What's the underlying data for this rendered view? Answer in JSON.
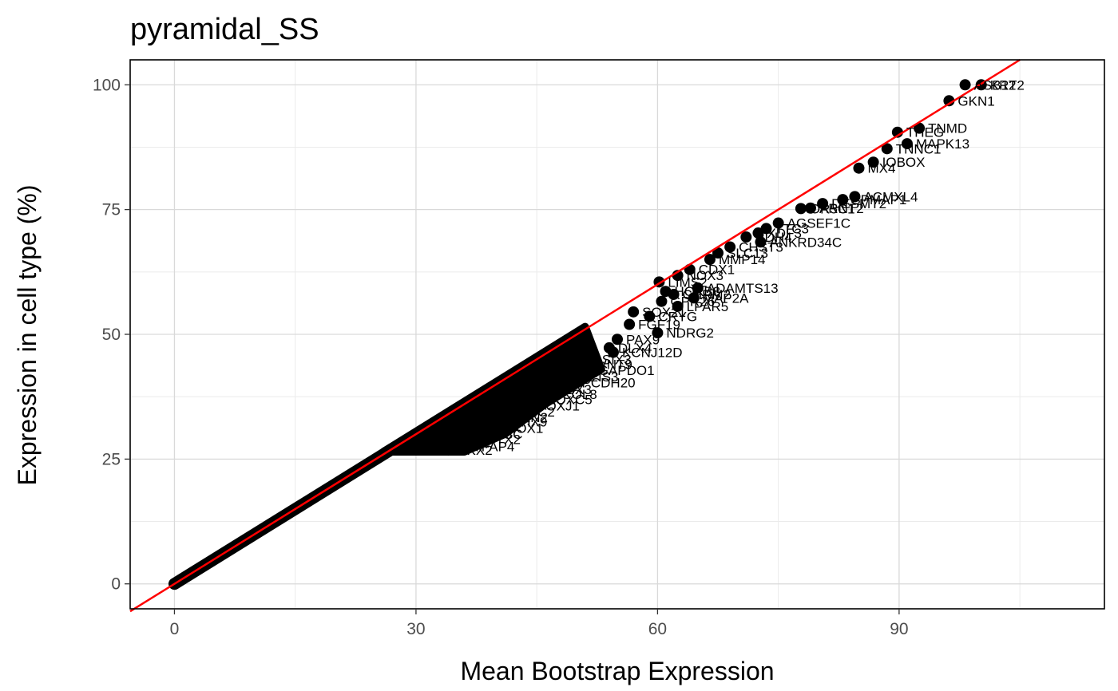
{
  "chart_data": {
    "type": "scatter",
    "title": "pyramidal_SS",
    "xlabel": "Mean Bootstrap Expression",
    "ylabel": "Expression in cell type (%)",
    "xlim": [
      -5.5,
      115.5
    ],
    "ylim": [
      -5,
      105
    ],
    "x_ticks": [
      0,
      30,
      60,
      90
    ],
    "y_ticks": [
      0,
      25,
      50,
      75,
      100
    ],
    "grid": true,
    "legend": "none",
    "colors": {
      "points": "#000000",
      "reference_line": "#ff0000",
      "grid_major": "#d9d9d9",
      "grid_minor": "#ebebeb",
      "panel_border": "#000000"
    },
    "reference_line": {
      "slope": 1,
      "intercept": 0
    },
    "dense_band": {
      "x_start": 0,
      "x_split": 27,
      "x_end": 51,
      "y_floor": 26.5
    },
    "labeled_points": [
      {
        "label": "ASB12",
        "x": 98.2,
        "y": 100
      },
      {
        "label": "KRT2",
        "x": 100.2,
        "y": 100
      },
      {
        "label": "GKN1",
        "x": 96.2,
        "y": 96.8
      },
      {
        "label": "TNMD",
        "x": 92.5,
        "y": 91.3
      },
      {
        "label": "THEG",
        "x": 89.8,
        "y": 90.5
      },
      {
        "label": "MAPK13",
        "x": 91.0,
        "y": 88.2
      },
      {
        "label": "TNNC1",
        "x": 88.5,
        "y": 87.2
      },
      {
        "label": "IOBOX",
        "x": 86.8,
        "y": 84.5
      },
      {
        "label": "MX4",
        "x": 85.0,
        "y": 83.3
      },
      {
        "label": "ACMXL4",
        "x": 84.5,
        "y": 77.6
      },
      {
        "label": "SPMAP1",
        "x": 83.0,
        "y": 77.0
      },
      {
        "label": "DESMT2",
        "x": 80.5,
        "y": 76.2
      },
      {
        "label": "ARNT2",
        "x": 79.0,
        "y": 75.3
      },
      {
        "label": "OR5C1",
        "x": 77.8,
        "y": 75.2
      },
      {
        "label": "AGSEF1C",
        "x": 75.0,
        "y": 72.3
      },
      {
        "label": "TTC3",
        "x": 73.5,
        "y": 71.2
      },
      {
        "label": "XDF3",
        "x": 72.5,
        "y": 70.3
      },
      {
        "label": "RDH4",
        "x": 71.0,
        "y": 69.5
      },
      {
        "label": "ANKRD34C",
        "x": 72.8,
        "y": 68.5
      },
      {
        "label": "CHST3",
        "x": 69.0,
        "y": 67.5
      },
      {
        "label": "SLC13",
        "x": 67.5,
        "y": 66.3
      },
      {
        "label": "MMP14",
        "x": 66.5,
        "y": 65.0
      },
      {
        "label": "CDX1",
        "x": 64.0,
        "y": 63.0
      },
      {
        "label": "NOX3",
        "x": 62.5,
        "y": 61.8
      },
      {
        "label": "LIMS2",
        "x": 60.2,
        "y": 60.5
      },
      {
        "label": "ADAMTS13",
        "x": 65.0,
        "y": 59.3
      },
      {
        "label": "HOXB8",
        "x": 61.0,
        "y": 58.6
      },
      {
        "label": "CHRM2",
        "x": 62.0,
        "y": 58.0
      },
      {
        "label": "MAP2A",
        "x": 64.5,
        "y": 57.3
      },
      {
        "label": "GPR26",
        "x": 60.5,
        "y": 56.6
      },
      {
        "label": "LPAR5",
        "x": 62.5,
        "y": 55.6
      },
      {
        "label": "SOX21",
        "x": 57.0,
        "y": 54.5
      },
      {
        "label": "CRYG",
        "x": 59.0,
        "y": 53.6
      },
      {
        "label": "FGF19",
        "x": 56.5,
        "y": 52.0
      },
      {
        "label": "NDRG2",
        "x": 60.0,
        "y": 50.3
      },
      {
        "label": "PAX9",
        "x": 55.0,
        "y": 49.0
      },
      {
        "label": "DLX4",
        "x": 54.0,
        "y": 47.3
      },
      {
        "label": "KCNJ12D",
        "x": 54.5,
        "y": 46.4
      },
      {
        "label": "SIX3",
        "x": 52.0,
        "y": 45.0
      },
      {
        "label": "WNT9",
        "x": 51.0,
        "y": 44.0
      },
      {
        "label": "GAPDO1",
        "x": 51.5,
        "y": 42.8
      },
      {
        "label": "MEIS3",
        "x": 49.0,
        "y": 41.5
      },
      {
        "label": "PCDH20",
        "x": 49.5,
        "y": 40.3
      },
      {
        "label": "TBX3",
        "x": 46.5,
        "y": 39.0
      },
      {
        "label": "COL8",
        "x": 47.0,
        "y": 38.0
      },
      {
        "label": "HOXC5",
        "x": 45.0,
        "y": 37.0
      },
      {
        "label": "FOXJ1",
        "x": 44.0,
        "y": 35.7
      },
      {
        "label": "ZIC2",
        "x": 42.5,
        "y": 34.5
      },
      {
        "label": "EN2",
        "x": 42.0,
        "y": 33.4
      },
      {
        "label": "LHX9",
        "x": 41.0,
        "y": 32.5
      },
      {
        "label": "PROX1",
        "x": 39.0,
        "y": 31.2
      },
      {
        "label": "GSC",
        "x": 38.5,
        "y": 30.0
      },
      {
        "label": "OTX2",
        "x": 37.5,
        "y": 29.0
      },
      {
        "label": "TFAP4",
        "x": 36.0,
        "y": 27.5
      },
      {
        "label": "NKX2",
        "x": 34.0,
        "y": 26.8
      }
    ]
  }
}
